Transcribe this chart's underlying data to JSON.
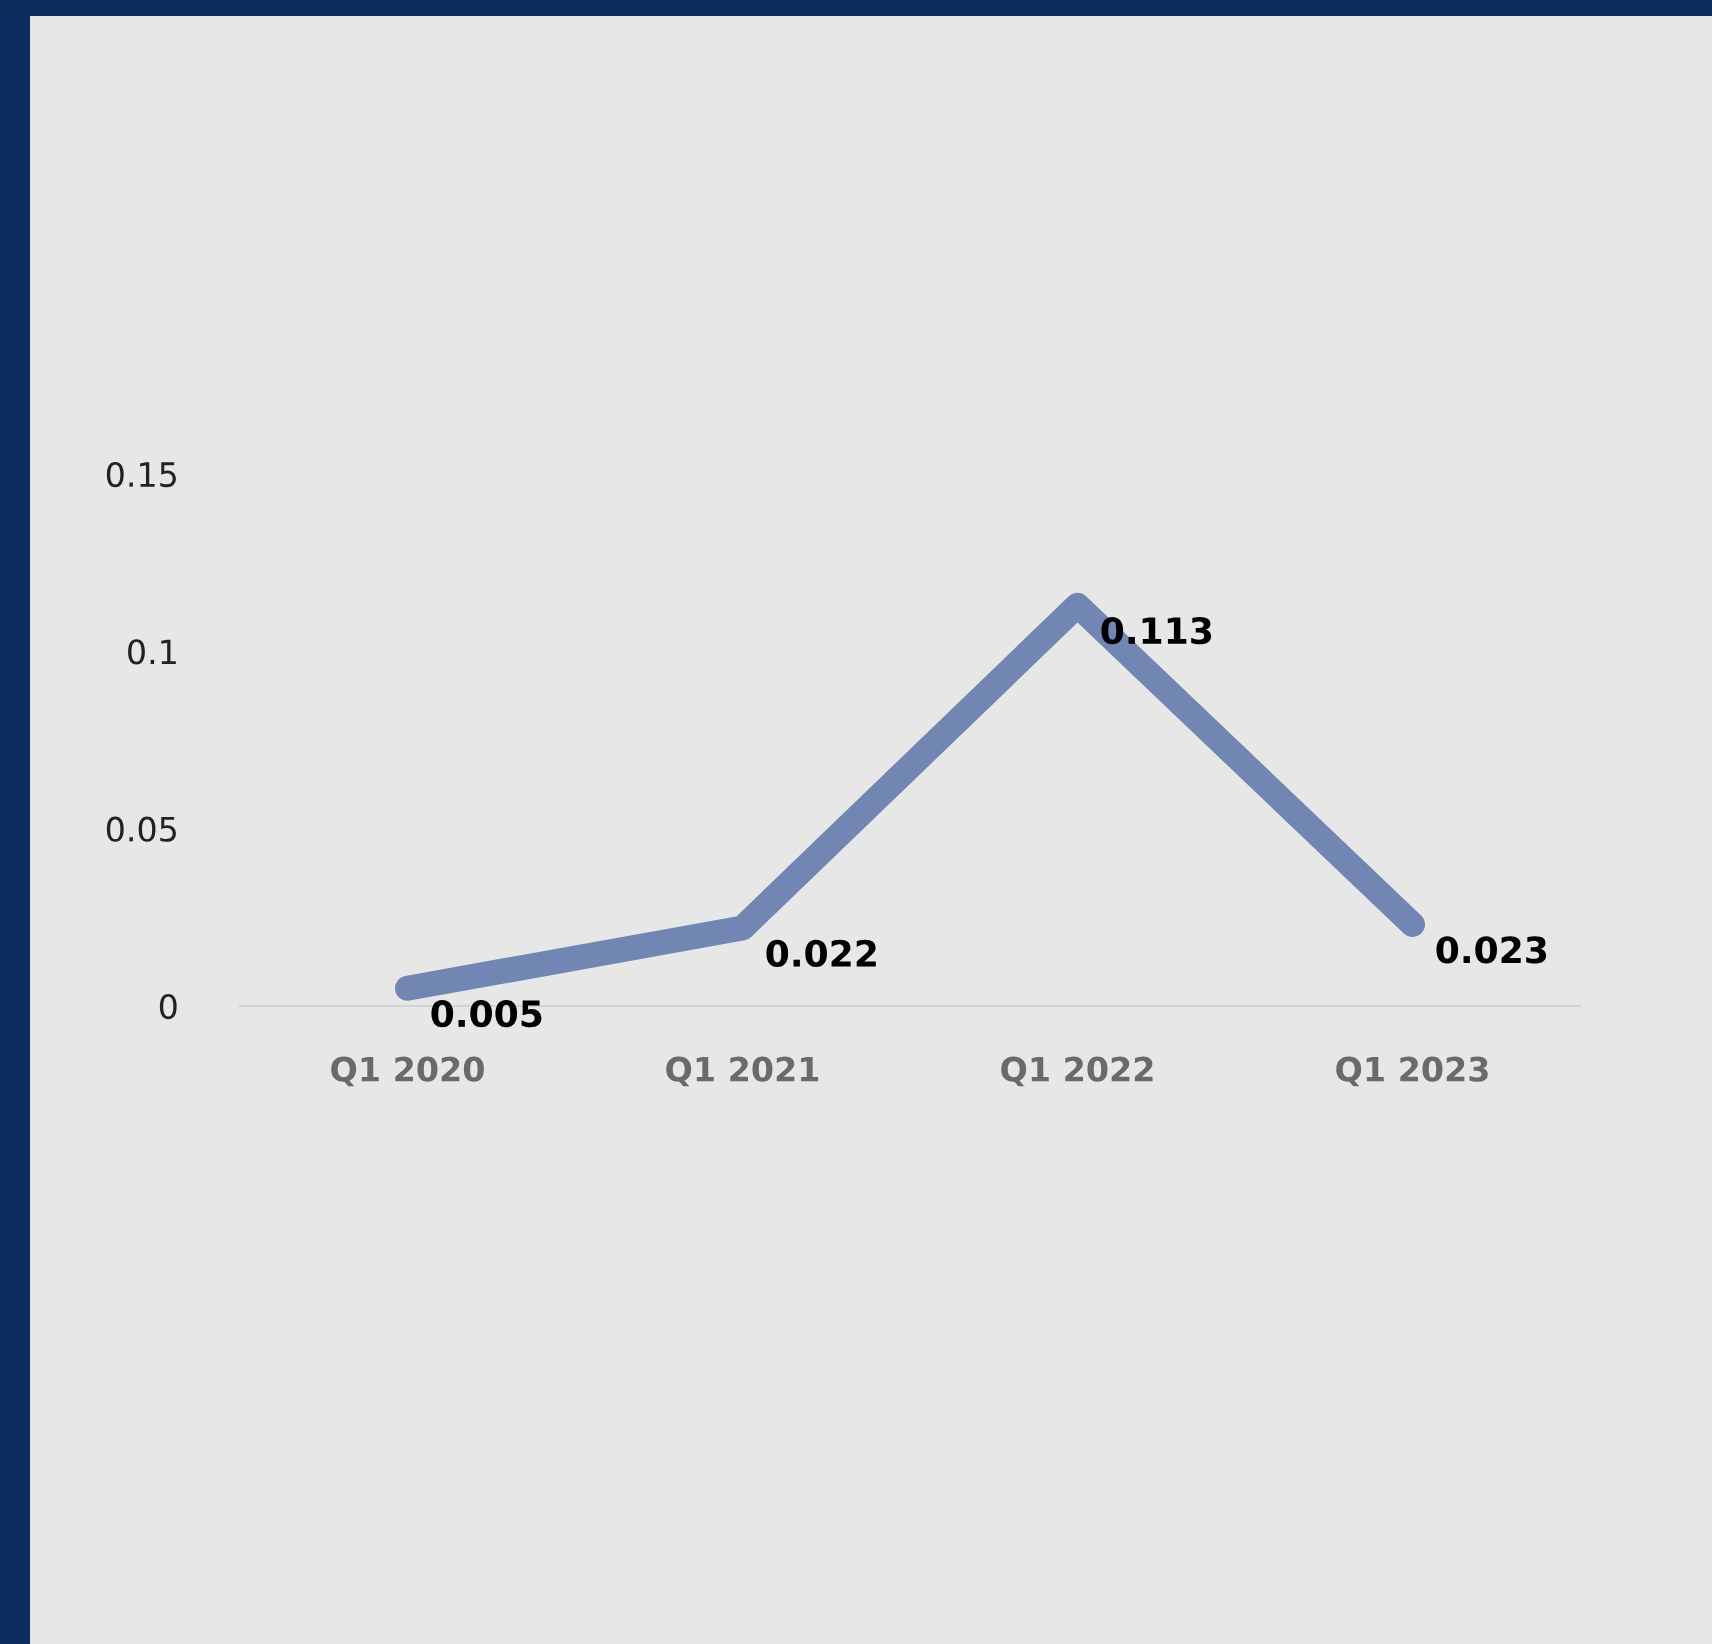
{
  "chart_data": {
    "type": "line",
    "categories": [
      "Q1 2020",
      "Q1 2021",
      "Q1 2022",
      "Q1 2023"
    ],
    "series": [
      {
        "color": "#7186b3",
        "values": [
          0.005,
          0.022,
          0.113,
          0.023
        ]
      }
    ],
    "ylim": [
      0,
      0.15
    ],
    "yticks": [
      0,
      0.05,
      {
        "value": 0.1,
        "label": "0.1"
      },
      0.15
    ],
    "data_labels": true,
    "grid": false,
    "line_style": "solid"
  }
}
